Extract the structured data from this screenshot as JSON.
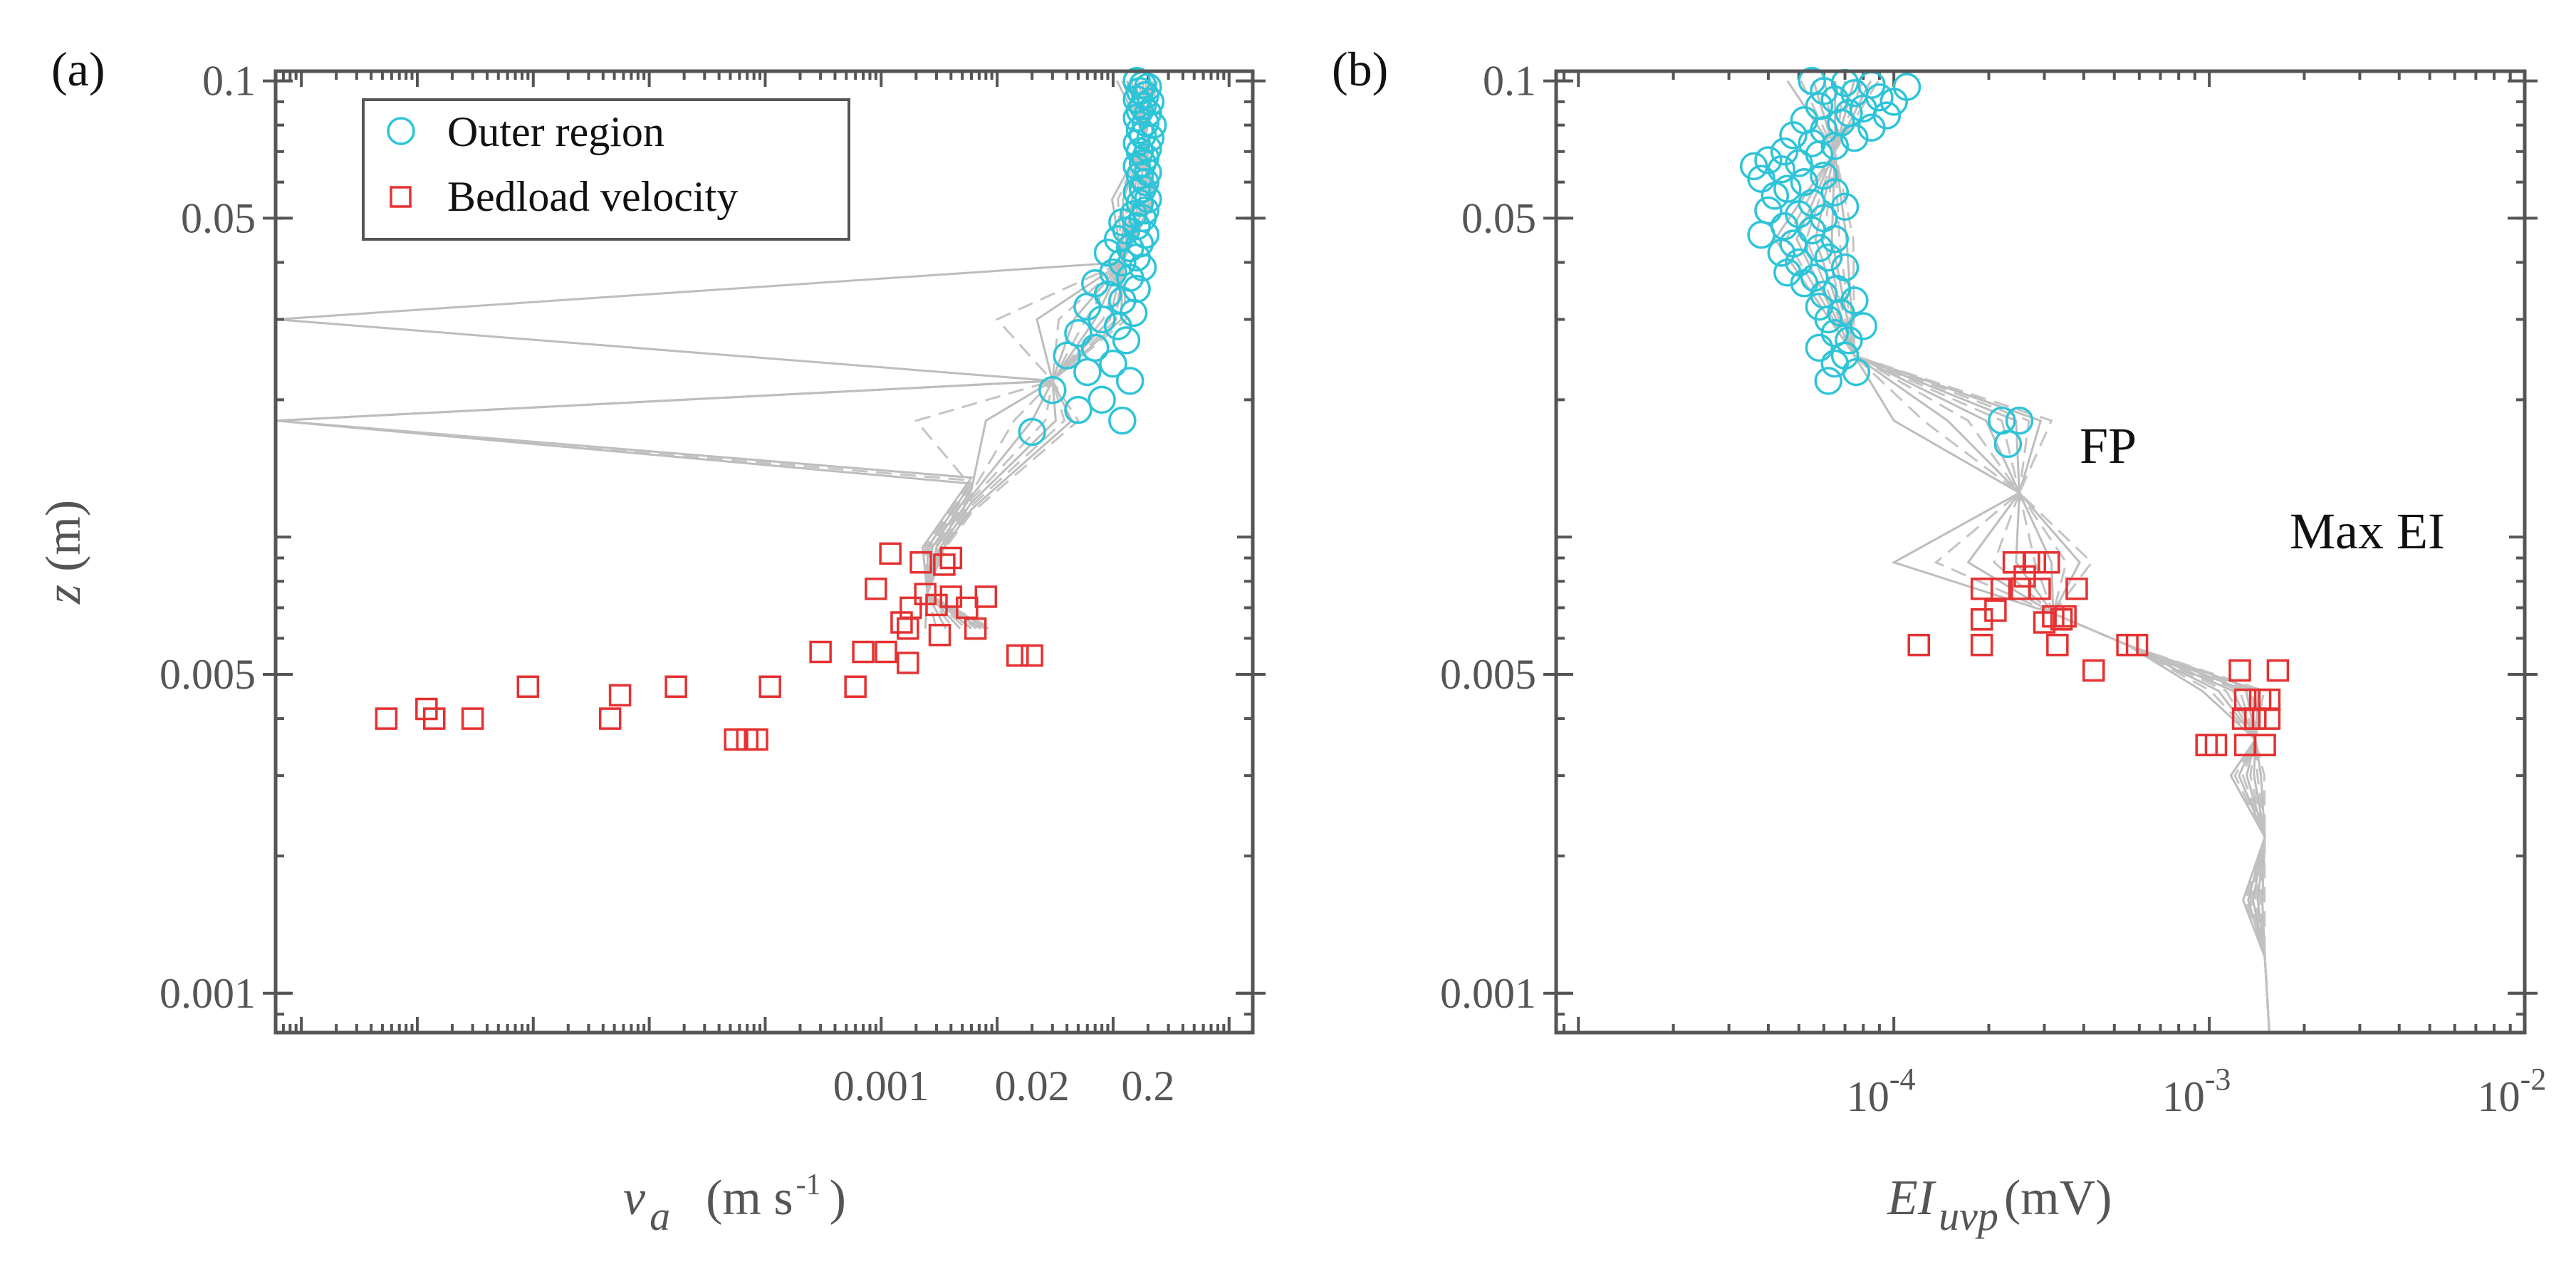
{
  "chart_data": [
    {
      "panel_label": "(a)",
      "type": "scatter",
      "x_scale": "log",
      "y_scale": "log",
      "xlim": [
        6e-09,
        1.6
      ],
      "ylim": [
        0.00082,
        0.105
      ],
      "xticks": [
        0.001,
        0.02,
        0.2
      ],
      "xtick_labels": [
        "0.001",
        "0.02",
        "0.2"
      ],
      "yticks": [
        0.1,
        0.05,
        0.005,
        0.001
      ],
      "ytick_labels": [
        "0.1",
        "0.05",
        "0.005",
        "0.001"
      ],
      "xlabel": "v",
      "xlabel_sub": "a",
      "xlabel_units": "(m s",
      "xlabel_units_sup": "-1",
      "xlabel_units_close": ")",
      "ylabel": "z",
      "ylabel_units": "(m)",
      "legend": {
        "entries": [
          "Outer region",
          "Bedload velocity"
        ],
        "location": "upper-left"
      },
      "series": [
        {
          "name": "Outer region",
          "marker": "circle",
          "color": "#2ec4d8",
          "points": [
            [
              0.16,
              0.1
            ],
            [
              0.18,
              0.098
            ],
            [
              0.2,
              0.097
            ],
            [
              0.17,
              0.095
            ],
            [
              0.19,
              0.093
            ],
            [
              0.16,
              0.091
            ],
            [
              0.21,
              0.09
            ],
            [
              0.18,
              0.088
            ],
            [
              0.17,
              0.086
            ],
            [
              0.2,
              0.085
            ],
            [
              0.16,
              0.083
            ],
            [
              0.19,
              0.081
            ],
            [
              0.22,
              0.08
            ],
            [
              0.17,
              0.078
            ],
            [
              0.18,
              0.076
            ],
            [
              0.21,
              0.075
            ],
            [
              0.16,
              0.073
            ],
            [
              0.2,
              0.071
            ],
            [
              0.17,
              0.07
            ],
            [
              0.19,
              0.068
            ],
            [
              0.18,
              0.066
            ],
            [
              0.16,
              0.065
            ],
            [
              0.2,
              0.063
            ],
            [
              0.17,
              0.062
            ],
            [
              0.19,
              0.06
            ],
            [
              0.18,
              0.058
            ],
            [
              0.16,
              0.057
            ],
            [
              0.2,
              0.055
            ],
            [
              0.17,
              0.054
            ],
            [
              0.19,
              0.052
            ],
            [
              0.15,
              0.051
            ],
            [
              0.18,
              0.05
            ],
            [
              0.12,
              0.049
            ],
            [
              0.16,
              0.048
            ],
            [
              0.13,
              0.047
            ],
            [
              0.19,
              0.046
            ],
            [
              0.11,
              0.045
            ],
            [
              0.17,
              0.044
            ],
            [
              0.14,
              0.043
            ],
            [
              0.09,
              0.042
            ],
            [
              0.16,
              0.041
            ],
            [
              0.12,
              0.04
            ],
            [
              0.18,
              0.039
            ],
            [
              0.1,
              0.038
            ],
            [
              0.14,
              0.037
            ],
            [
              0.07,
              0.036
            ],
            [
              0.16,
              0.035
            ],
            [
              0.09,
              0.034
            ],
            [
              0.12,
              0.033
            ],
            [
              0.06,
              0.032
            ],
            [
              0.15,
              0.031
            ],
            [
              0.08,
              0.03
            ],
            [
              0.11,
              0.029
            ],
            [
              0.05,
              0.028
            ],
            [
              0.13,
              0.027
            ],
            [
              0.07,
              0.026
            ],
            [
              0.04,
              0.025
            ],
            [
              0.1,
              0.024
            ],
            [
              0.06,
              0.023
            ],
            [
              0.14,
              0.022
            ],
            [
              0.03,
              0.021
            ],
            [
              0.08,
              0.02
            ],
            [
              0.05,
              0.019
            ],
            [
              0.12,
              0.018
            ],
            [
              0.02,
              0.017
            ]
          ]
        },
        {
          "name": "Bedload velocity",
          "marker": "square",
          "color": "#e53131",
          "points": [
            [
              0.0012,
              0.0092
            ],
            [
              0.004,
              0.009
            ],
            [
              0.0022,
              0.0088
            ],
            [
              0.0035,
              0.0087
            ],
            [
              0.0009,
              0.0077
            ],
            [
              0.0024,
              0.0075
            ],
            [
              0.008,
              0.0074
            ],
            [
              0.004,
              0.0074
            ],
            [
              0.003,
              0.0071
            ],
            [
              0.0018,
              0.007
            ],
            [
              0.0055,
              0.007
            ],
            [
              0.0015,
              0.0065
            ],
            [
              0.0017,
              0.0063
            ],
            [
              0.0065,
              0.0063
            ],
            [
              0.0032,
              0.0061
            ],
            [
              0.0011,
              0.0056
            ],
            [
              0.0007,
              0.0056
            ],
            [
              0.0003,
              0.0056
            ],
            [
              0.015,
              0.0055
            ],
            [
              0.02,
              0.0055
            ],
            [
              0.0017,
              0.0053
            ],
            [
              0.0006,
              0.0047
            ],
            [
              9e-07,
              0.0047
            ],
            [
              0.00011,
              0.0047
            ],
            [
              1.7e-05,
              0.0047
            ],
            [
              5.6e-06,
              0.0045
            ],
            [
              1.2e-07,
              0.0042
            ],
            [
              4.6e-06,
              0.004
            ],
            [
              5.4e-08,
              0.004
            ],
            [
              1.4e-07,
              0.004
            ],
            [
              3e-07,
              0.004
            ],
            [
              5.5e-05,
              0.0036
            ],
            [
              7e-05,
              0.0036
            ],
            [
              8.5e-05,
              0.0036
            ]
          ]
        }
      ],
      "reference_profiles": 12
    },
    {
      "panel_label": "(b)",
      "type": "scatter",
      "x_scale": "log",
      "y_scale": "log",
      "xlim": [
        8.5e-06,
        0.01
      ],
      "ylim": [
        0.00082,
        0.105
      ],
      "xticks": [
        0.0001,
        0.001,
        0.01
      ],
      "xtick_labels": [
        {
          "base": "10",
          "exp": "-4"
        },
        {
          "base": "10",
          "exp": "-3"
        },
        {
          "base": "10",
          "exp": "-2"
        }
      ],
      "yticks": [
        0.1,
        0.05,
        0.005,
        0.001
      ],
      "ytick_labels": [
        "0.1",
        "0.05",
        "0.005",
        "0.001"
      ],
      "xlabel": "EI",
      "xlabel_sub": "uvp",
      "xlabel_units": "(mV)",
      "annotations": [
        {
          "text": "FP",
          "x": 0.00045,
          "y": 0.0068
        },
        {
          "text": "Max EI",
          "x": 0.0032,
          "y": 0.0055
        }
      ],
      "series": [
        {
          "name": "Outer region",
          "marker": "circle",
          "color": "#2ec4d8",
          "points": [
            [
              5.5e-05,
              0.1
            ],
            [
              7e-05,
              0.099
            ],
            [
              8.5e-05,
              0.098
            ],
            [
              0.00011,
              0.097
            ],
            [
              6e-05,
              0.095
            ],
            [
              7.5e-05,
              0.094
            ],
            [
              9e-05,
              0.092
            ],
            [
              6.5e-05,
              0.091
            ],
            [
              0.0001,
              0.09
            ],
            [
              5.8e-05,
              0.088
            ],
            [
              8e-05,
              0.087
            ],
            [
              7.2e-05,
              0.085
            ],
            [
              9.5e-05,
              0.084
            ],
            [
              5.2e-05,
              0.082
            ],
            [
              6.8e-05,
              0.081
            ],
            [
              8.5e-05,
              0.079
            ],
            [
              6e-05,
              0.078
            ],
            [
              4.8e-05,
              0.076
            ],
            [
              7.5e-05,
              0.075
            ],
            [
              5.5e-05,
              0.073
            ],
            [
              6.5e-05,
              0.072
            ],
            [
              4.5e-05,
              0.07
            ],
            [
              5.8e-05,
              0.069
            ],
            [
              4e-05,
              0.067
            ],
            [
              5e-05,
              0.066
            ],
            [
              3.6e-05,
              0.065
            ],
            [
              4.4e-05,
              0.064
            ],
            [
              6e-05,
              0.062
            ],
            [
              3.8e-05,
              0.061
            ],
            [
              5.2e-05,
              0.06
            ],
            [
              4.6e-05,
              0.058
            ],
            [
              6.5e-05,
              0.057
            ],
            [
              4.2e-05,
              0.056
            ],
            [
              5.5e-05,
              0.054
            ],
            [
              7e-05,
              0.053
            ],
            [
              4e-05,
              0.052
            ],
            [
              5e-05,
              0.051
            ],
            [
              6e-05,
              0.05
            ],
            [
              4.5e-05,
              0.048
            ],
            [
              5.5e-05,
              0.047
            ],
            [
              3.8e-05,
              0.046
            ],
            [
              6.5e-05,
              0.045
            ],
            [
              4.8e-05,
              0.044
            ],
            [
              5.8e-05,
              0.043
            ],
            [
              4.4e-05,
              0.042
            ],
            [
              6.2e-05,
              0.041
            ],
            [
              5e-05,
              0.04
            ],
            [
              7e-05,
              0.039
            ],
            [
              4.6e-05,
              0.038
            ],
            [
              5.6e-05,
              0.037
            ],
            [
              5.2e-05,
              0.036
            ],
            [
              6.6e-05,
              0.035
            ],
            [
              6e-05,
              0.034
            ],
            [
              7.5e-05,
              0.033
            ],
            [
              5.8e-05,
              0.032
            ],
            [
              6.8e-05,
              0.031
            ],
            [
              6.2e-05,
              0.03
            ],
            [
              8e-05,
              0.029
            ],
            [
              6.5e-05,
              0.028
            ],
            [
              7.2e-05,
              0.027
            ],
            [
              5.8e-05,
              0.026
            ],
            [
              7e-05,
              0.025
            ],
            [
              6.5e-05,
              0.024
            ],
            [
              7.6e-05,
              0.023
            ],
            [
              6.2e-05,
              0.022
            ],
            [
              0.00022,
              0.018
            ],
            [
              0.00025,
              0.018
            ],
            [
              0.00023,
              0.016
            ]
          ]
        },
        {
          "name": "Bedload velocity",
          "marker": "square",
          "color": "#e53131",
          "points": [
            [
              0.00024,
              0.0088
            ],
            [
              0.00028,
              0.0088
            ],
            [
              0.00031,
              0.0088
            ],
            [
              0.00026,
              0.0082
            ],
            [
              0.00019,
              0.0077
            ],
            [
              0.00022,
              0.0077
            ],
            [
              0.00025,
              0.0077
            ],
            [
              0.00029,
              0.0077
            ],
            [
              0.00038,
              0.0077
            ],
            [
              0.00021,
              0.0069
            ],
            [
              0.00032,
              0.0067
            ],
            [
              0.00035,
              0.0067
            ],
            [
              0.00019,
              0.0066
            ],
            [
              0.0003,
              0.0065
            ],
            [
              0.00034,
              0.0066
            ],
            [
              0.00012,
              0.0058
            ],
            [
              0.00019,
              0.0058
            ],
            [
              0.00033,
              0.0058
            ],
            [
              0.00055,
              0.0058
            ],
            [
              0.00059,
              0.0058
            ],
            [
              0.00043,
              0.0051
            ],
            [
              0.00125,
              0.0051
            ],
            [
              0.00165,
              0.0051
            ],
            [
              0.0013,
              0.0044
            ],
            [
              0.00145,
              0.0044
            ],
            [
              0.00155,
              0.0044
            ],
            [
              0.00128,
              0.004
            ],
            [
              0.0014,
              0.004
            ],
            [
              0.00155,
              0.004
            ],
            [
              0.00098,
              0.0035
            ],
            [
              0.00105,
              0.0035
            ],
            [
              0.0013,
              0.0035
            ],
            [
              0.0015,
              0.0035
            ]
          ]
        }
      ],
      "reference_profiles": 10
    }
  ]
}
